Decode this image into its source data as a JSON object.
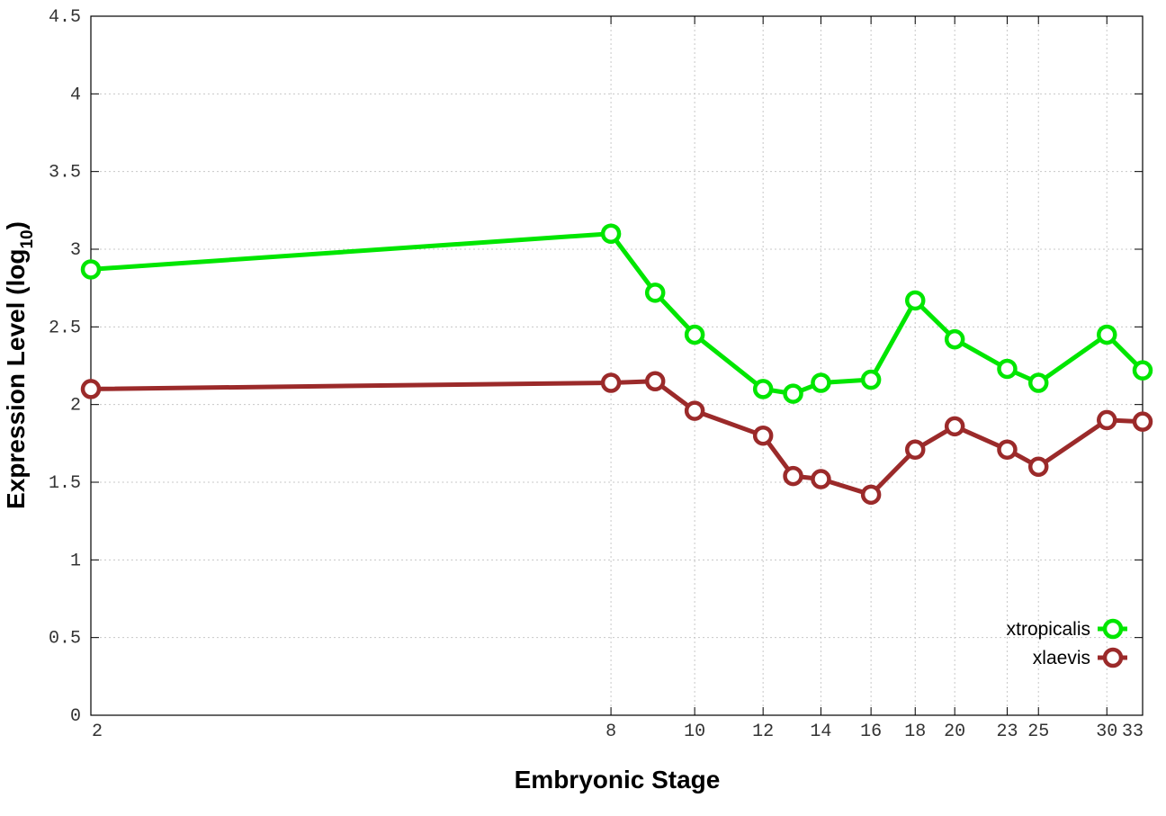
{
  "chart_data": {
    "type": "line",
    "xlabel": "Embryonic Stage",
    "ylabel_main": "Expression Level (log",
    "ylabel_sub": "10",
    "ylabel_close": ")",
    "x_ticks": [
      "2",
      "8",
      "10",
      "12",
      "14",
      "16",
      "18",
      "20",
      "23",
      "25",
      "30",
      "33"
    ],
    "y_ticks": [
      "0",
      "0.5",
      "1",
      "1.5",
      "2",
      "2.5",
      "3",
      "3.5",
      "4",
      "4.5"
    ],
    "xlim": [
      2,
      33
    ],
    "ylim": [
      0,
      4.5
    ],
    "x_scale": "log",
    "grid": true,
    "legend_position": "bottom-right",
    "x": [
      2,
      8,
      9,
      10,
      12,
      13,
      14,
      16,
      18,
      20,
      23,
      25,
      30,
      33
    ],
    "series": [
      {
        "name": "xtropicalis",
        "color": "#00e600",
        "values": [
          2.87,
          3.1,
          2.72,
          2.45,
          2.1,
          2.07,
          2.14,
          2.16,
          2.67,
          2.42,
          2.23,
          2.14,
          2.45,
          2.22
        ]
      },
      {
        "name": "xlaevis",
        "color": "#9b2a2a",
        "values": [
          2.1,
          2.14,
          2.15,
          1.96,
          1.8,
          1.54,
          1.52,
          1.42,
          1.71,
          1.86,
          1.71,
          1.6,
          1.9,
          1.89
        ]
      }
    ]
  }
}
